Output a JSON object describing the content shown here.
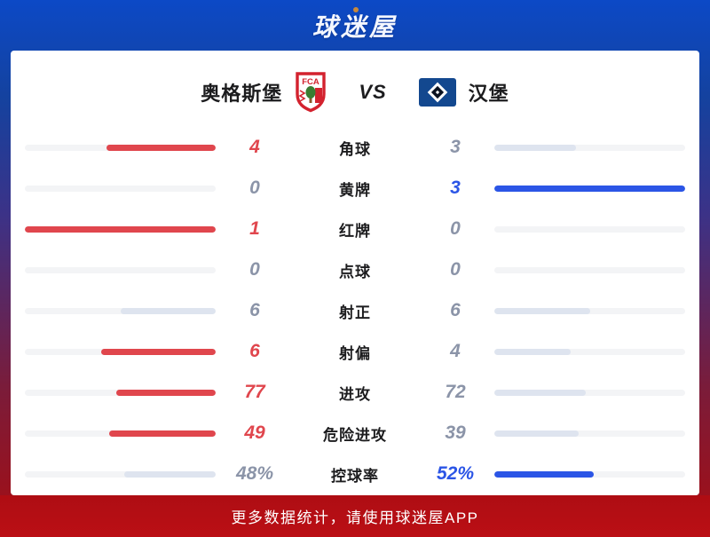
{
  "logo": {
    "text": "球迷屋"
  },
  "match": {
    "home": {
      "name": "奥格斯堡"
    },
    "vs_label": "VS",
    "away": {
      "name": "汉堡"
    }
  },
  "stats": {
    "rows": [
      {
        "label": "角球",
        "home": {
          "value": "4",
          "pct": 57,
          "lead": true
        },
        "away": {
          "value": "3",
          "pct": 43,
          "lead": false
        }
      },
      {
        "label": "黄牌",
        "home": {
          "value": "0",
          "pct": 0,
          "lead": false
        },
        "away": {
          "value": "3",
          "pct": 100,
          "lead": true
        }
      },
      {
        "label": "红牌",
        "home": {
          "value": "1",
          "pct": 100,
          "lead": true
        },
        "away": {
          "value": "0",
          "pct": 0,
          "lead": false
        }
      },
      {
        "label": "点球",
        "home": {
          "value": "0",
          "pct": 0,
          "lead": false
        },
        "away": {
          "value": "0",
          "pct": 0,
          "lead": false
        }
      },
      {
        "label": "射正",
        "home": {
          "value": "6",
          "pct": 50,
          "lead": false
        },
        "away": {
          "value": "6",
          "pct": 50,
          "lead": false
        }
      },
      {
        "label": "射偏",
        "home": {
          "value": "6",
          "pct": 60,
          "lead": true
        },
        "away": {
          "value": "4",
          "pct": 40,
          "lead": false
        }
      },
      {
        "label": "进攻",
        "home": {
          "value": "77",
          "pct": 52,
          "lead": true
        },
        "away": {
          "value": "72",
          "pct": 48,
          "lead": false
        }
      },
      {
        "label": "危险进攻",
        "home": {
          "value": "49",
          "pct": 56,
          "lead": true
        },
        "away": {
          "value": "39",
          "pct": 44,
          "lead": false
        }
      },
      {
        "label": "控球率",
        "home": {
          "value": "48%",
          "pct": 48,
          "lead": false
        },
        "away": {
          "value": "52%",
          "pct": 52,
          "lead": true
        }
      }
    ]
  },
  "footer": {
    "text": "更多数据统计，请使用球迷屋APP"
  },
  "colors": {
    "home_accent": "#e0464d",
    "away_accent": "#2b55e6",
    "neutral_fill": "#dee4ef",
    "neutral_text": "#8b94a8"
  }
}
